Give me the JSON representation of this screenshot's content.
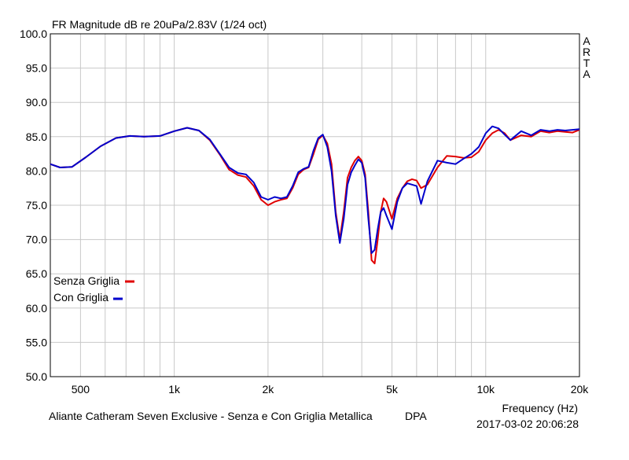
{
  "chart_data": {
    "type": "line",
    "title": "FR Magnitude dB re 20uPa/2.83V (1/24 oct)",
    "watermark": "ARTA",
    "xlabel": "Frequency (Hz)",
    "x_scale": "log",
    "xlim": [
      400,
      20000
    ],
    "ylim": [
      50,
      100
    ],
    "grid": true,
    "y_ticks": [
      "100.0",
      "95.0",
      "90.0",
      "85.0",
      "80.0",
      "75.0",
      "70.0",
      "65.0",
      "60.0",
      "55.0",
      "50.0"
    ],
    "x_tick_labels": [
      {
        "value": 500,
        "label": "500"
      },
      {
        "value": 1000,
        "label": "1k"
      },
      {
        "value": 2000,
        "label": "2k"
      },
      {
        "value": 5000,
        "label": "5k"
      },
      {
        "value": 10000,
        "label": "10k"
      },
      {
        "value": 20000,
        "label": "20k"
      }
    ],
    "legend_position": "left-middle",
    "series": [
      {
        "name": "Senza Griglia",
        "color": "#e00000",
        "x": [
          400,
          430,
          470,
          520,
          580,
          650,
          720,
          800,
          900,
          1000,
          1100,
          1200,
          1300,
          1400,
          1500,
          1600,
          1700,
          1800,
          1900,
          2000,
          2100,
          2200,
          2300,
          2400,
          2500,
          2600,
          2700,
          2800,
          2900,
          3000,
          3100,
          3200,
          3300,
          3400,
          3500,
          3600,
          3700,
          3800,
          3900,
          4000,
          4100,
          4200,
          4300,
          4400,
          4500,
          4600,
          4700,
          4800,
          5000,
          5200,
          5400,
          5600,
          5800,
          6000,
          6200,
          6500,
          7000,
          7500,
          8000,
          8500,
          9000,
          9500,
          10000,
          10500,
          11000,
          11500,
          12000,
          13000,
          14000,
          15000,
          16000,
          17000,
          18000,
          19000,
          20000
        ],
        "y": [
          81,
          80.5,
          80.6,
          82,
          83.6,
          84.8,
          85.1,
          85,
          85.1,
          85.8,
          86.3,
          85.9,
          84.5,
          82.4,
          80.2,
          79.4,
          79.1,
          77.8,
          75.8,
          75,
          75.5,
          75.8,
          76,
          77.5,
          79.5,
          80.2,
          80.5,
          82.5,
          84.6,
          85.2,
          84,
          81,
          74,
          70,
          74,
          79,
          80.5,
          81.5,
          82.1,
          81.5,
          79.5,
          74,
          67,
          66.5,
          70,
          74,
          76,
          75.5,
          73,
          76,
          77.5,
          78.5,
          78.8,
          78.6,
          77.5,
          78,
          80.5,
          82.2,
          82.1,
          81.9,
          82,
          82.8,
          84.5,
          85.5,
          86,
          85.5,
          84.5,
          85.2,
          85,
          85.8,
          85.6,
          85.8,
          85.7,
          85.6,
          86
        ]
      },
      {
        "name": "Con Griglia",
        "color": "#0000cc",
        "x": [
          400,
          430,
          470,
          520,
          580,
          650,
          720,
          800,
          900,
          1000,
          1100,
          1200,
          1300,
          1400,
          1500,
          1600,
          1700,
          1800,
          1900,
          2000,
          2100,
          2200,
          2300,
          2400,
          2500,
          2600,
          2700,
          2800,
          2900,
          3000,
          3100,
          3200,
          3300,
          3400,
          3500,
          3600,
          3700,
          3800,
          3900,
          4000,
          4100,
          4200,
          4300,
          4400,
          4500,
          4600,
          4700,
          4800,
          5000,
          5200,
          5400,
          5600,
          5800,
          6000,
          6200,
          6500,
          7000,
          7500,
          8000,
          8500,
          9000,
          9500,
          10000,
          10500,
          11000,
          11500,
          12000,
          13000,
          14000,
          15000,
          16000,
          17000,
          18000,
          19000,
          20000
        ],
        "y": [
          81,
          80.5,
          80.6,
          82,
          83.6,
          84.8,
          85.1,
          85,
          85.1,
          85.8,
          86.3,
          85.9,
          84.6,
          82.5,
          80.5,
          79.7,
          79.5,
          78.3,
          76.2,
          75.8,
          76.2,
          76,
          76.2,
          77.8,
          79.8,
          80.3,
          80.6,
          83,
          84.8,
          85.3,
          83.5,
          80,
          73.5,
          69.5,
          73,
          78,
          79.8,
          80.8,
          81.7,
          81.2,
          79,
          73,
          68,
          68.5,
          71.5,
          74,
          74.6,
          73.5,
          71.5,
          75.5,
          77.5,
          78.2,
          78,
          77.8,
          75.2,
          78.5,
          81.5,
          81.2,
          81,
          81.8,
          82.5,
          83.5,
          85.5,
          86.5,
          86.2,
          85.3,
          84.5,
          85.8,
          85.2,
          86,
          85.8,
          86,
          85.9,
          86,
          86.1
        ]
      }
    ]
  },
  "footer": {
    "description": "Aliante Catheram Seven Exclusive - Senza e Con Griglia Metallica",
    "dpa": "DPA",
    "timestamp": "2017-03-02  20:06:28"
  }
}
